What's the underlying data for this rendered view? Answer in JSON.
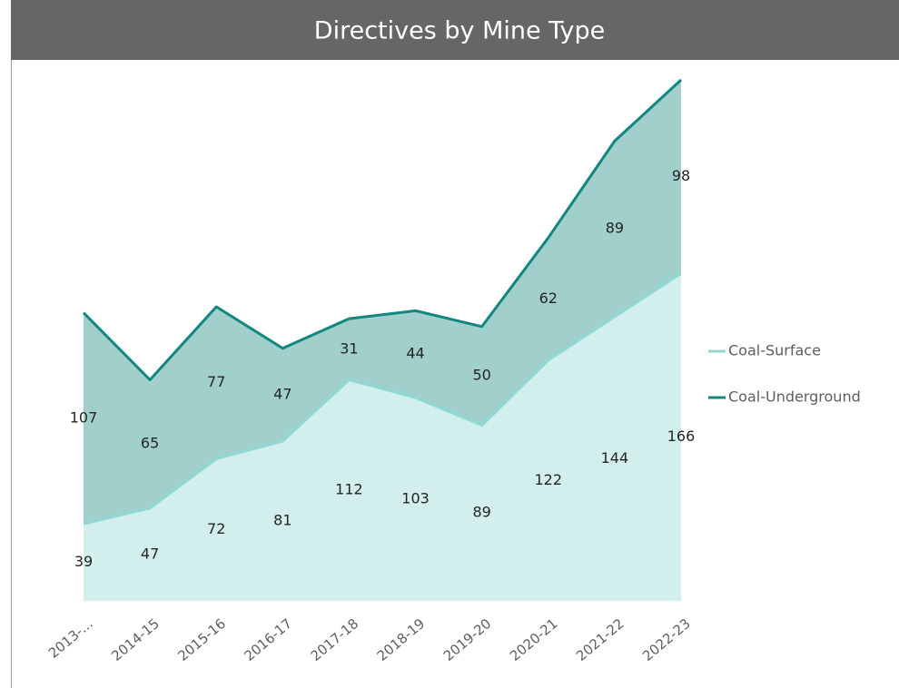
{
  "chart_data": {
    "type": "area",
    "stacked": true,
    "title": "Directives by Mine Type",
    "categories": [
      "2013-...",
      "2014-15",
      "2015-16",
      "2016-17",
      "2017-18",
      "2018-19",
      "2019-20",
      "2020-21",
      "2021-22",
      "2022-23"
    ],
    "series": [
      {
        "name": "Coal-Surface",
        "color": "#8fd8d3",
        "values": [
          39,
          47,
          72,
          81,
          112,
          103,
          89,
          122,
          144,
          166
        ]
      },
      {
        "name": "Coal-Underground",
        "color": "#12877f",
        "values": [
          107,
          65,
          77,
          47,
          31,
          44,
          50,
          62,
          89,
          98
        ]
      }
    ],
    "legend": "right"
  }
}
